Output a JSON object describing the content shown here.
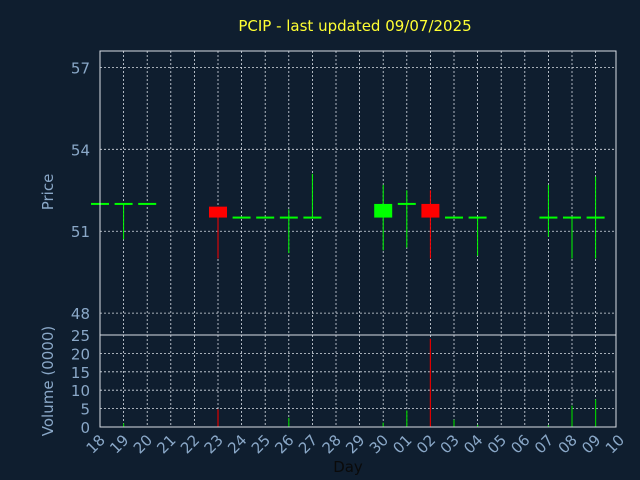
{
  "colors": {
    "background": "#0f1e2f",
    "frame": "#d8dee6",
    "grid": "#d8dee6",
    "title": "#ffff33",
    "tick_label": "#8aa8c8",
    "axis_label": "#8aa8c8",
    "xlabel": "#0a0a0a",
    "up": "#00ff00",
    "down": "#ff0000",
    "volume_up": "#00c800",
    "volume_down": "#dd0000"
  },
  "chart_data": [
    {
      "type": "candlestick",
      "title": "PCIP - last updated 09/07/2025",
      "ylabel": "Price",
      "xlabel": "Day",
      "ylim": [
        47.2,
        57.6
      ],
      "yticks": [
        48,
        51,
        54,
        57
      ],
      "grid": true,
      "x_tick_labels": [
        "18",
        "19",
        "20",
        "21",
        "22",
        "23",
        "24",
        "25",
        "26",
        "27",
        "28",
        "29",
        "30",
        "01",
        "02",
        "03",
        "04",
        "05",
        "06",
        "07",
        "08",
        "09",
        "10"
      ],
      "candles": [
        {
          "day": "18",
          "open": 52.0,
          "high": 52.0,
          "low": 52.0,
          "close": 52.0
        },
        {
          "day": "19",
          "open": 52.0,
          "high": 52.0,
          "low": 50.7,
          "close": 52.0
        },
        {
          "day": "20",
          "open": 52.0,
          "high": 52.0,
          "low": 52.0,
          "close": 52.0
        },
        {
          "day": "23",
          "open": 51.9,
          "high": 51.9,
          "low": 50.0,
          "close": 51.5
        },
        {
          "day": "24",
          "open": 51.5,
          "high": 51.5,
          "low": 51.5,
          "close": 51.5
        },
        {
          "day": "25",
          "open": 51.5,
          "high": 51.5,
          "low": 51.5,
          "close": 51.5
        },
        {
          "day": "26",
          "open": 51.5,
          "high": 51.8,
          "low": 50.2,
          "close": 51.5
        },
        {
          "day": "27",
          "open": 51.5,
          "high": 53.1,
          "low": 51.5,
          "close": 51.5
        },
        {
          "day": "30",
          "open": 51.5,
          "high": 52.7,
          "low": 50.3,
          "close": 52.0
        },
        {
          "day": "01",
          "open": 52.0,
          "high": 52.5,
          "low": 50.4,
          "close": 52.0
        },
        {
          "day": "02",
          "open": 52.0,
          "high": 52.5,
          "low": 50.0,
          "close": 51.5
        },
        {
          "day": "03",
          "open": 51.5,
          "high": 51.5,
          "low": 51.5,
          "close": 51.5
        },
        {
          "day": "04",
          "open": 51.5,
          "high": 51.5,
          "low": 50.1,
          "close": 51.5
        },
        {
          "day": "07",
          "open": 51.5,
          "high": 52.7,
          "low": 50.8,
          "close": 51.5
        },
        {
          "day": "08",
          "open": 51.5,
          "high": 51.5,
          "low": 50.0,
          "close": 51.5
        },
        {
          "day": "09",
          "open": 51.5,
          "high": 53.0,
          "low": 50.0,
          "close": 51.5
        }
      ]
    },
    {
      "type": "bar",
      "ylabel": "Volume (0000)",
      "ylim": [
        0,
        25
      ],
      "yticks": [
        0,
        5,
        10,
        15,
        20,
        25
      ],
      "grid": true,
      "bars": [
        {
          "day": "19",
          "value": 1.0,
          "direction": "up"
        },
        {
          "day": "23",
          "value": 4.8,
          "direction": "down"
        },
        {
          "day": "26",
          "value": 2.5,
          "direction": "up"
        },
        {
          "day": "30",
          "value": 1.2,
          "direction": "up"
        },
        {
          "day": "01",
          "value": 4.5,
          "direction": "up"
        },
        {
          "day": "02",
          "value": 24.0,
          "direction": "down"
        },
        {
          "day": "03",
          "value": 2.0,
          "direction": "up"
        },
        {
          "day": "04",
          "value": 0.6,
          "direction": "up"
        },
        {
          "day": "07",
          "value": 0.5,
          "direction": "up"
        },
        {
          "day": "08",
          "value": 5.8,
          "direction": "up"
        },
        {
          "day": "09",
          "value": 7.5,
          "direction": "up"
        }
      ]
    }
  ]
}
